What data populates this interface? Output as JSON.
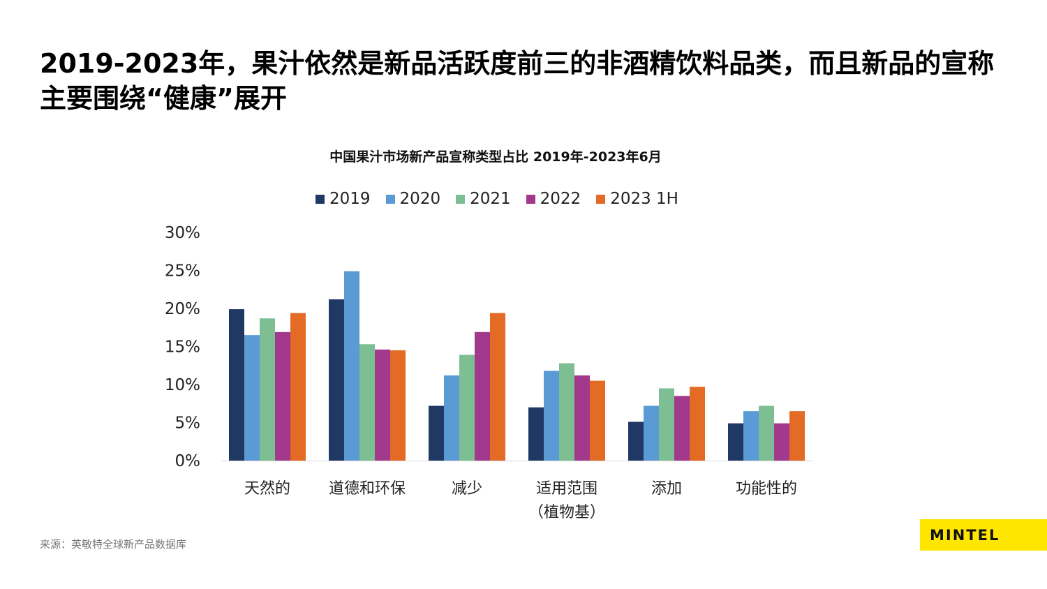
{
  "title": "2019-2023年，果汁依然是新品活跃度前三的非酒精饮料品类，而且新品的宣称主要围绕“健康”展开",
  "source": "来源：英敏特全球新产品数据库",
  "logo": "MINTEL",
  "colors": {
    "2019": "#1f3864",
    "2020": "#5b9bd5",
    "2021": "#7dbf93",
    "2022": "#a2398c",
    "2023 1H": "#e46b25",
    "logo_bg": "#ffe600"
  },
  "chart_data": {
    "type": "bar",
    "title": "中国果汁市场新产品宣称类型占比 2019年-2023年6月",
    "categories": [
      "天然的",
      "道德和环保",
      "减少",
      "适用范围\n（植物基）",
      "添加",
      "功能性的"
    ],
    "series": [
      {
        "name": "2019",
        "values": [
          19.9,
          21.2,
          7.2,
          7.0,
          5.1,
          4.9
        ]
      },
      {
        "name": "2020",
        "values": [
          16.5,
          24.9,
          11.2,
          11.8,
          7.2,
          6.5
        ]
      },
      {
        "name": "2021",
        "values": [
          18.7,
          15.3,
          13.9,
          12.8,
          9.5,
          7.2
        ]
      },
      {
        "name": "2022",
        "values": [
          16.9,
          14.6,
          16.9,
          11.2,
          8.5,
          4.9
        ]
      },
      {
        "name": "2023 1H",
        "values": [
          19.4,
          14.5,
          19.4,
          10.5,
          9.7,
          6.5
        ]
      }
    ],
    "yticks": [
      "0%",
      "5%",
      "10%",
      "15%",
      "20%",
      "25%",
      "30%"
    ],
    "ylim": [
      0,
      30
    ],
    "grid": false,
    "legend": "top"
  }
}
